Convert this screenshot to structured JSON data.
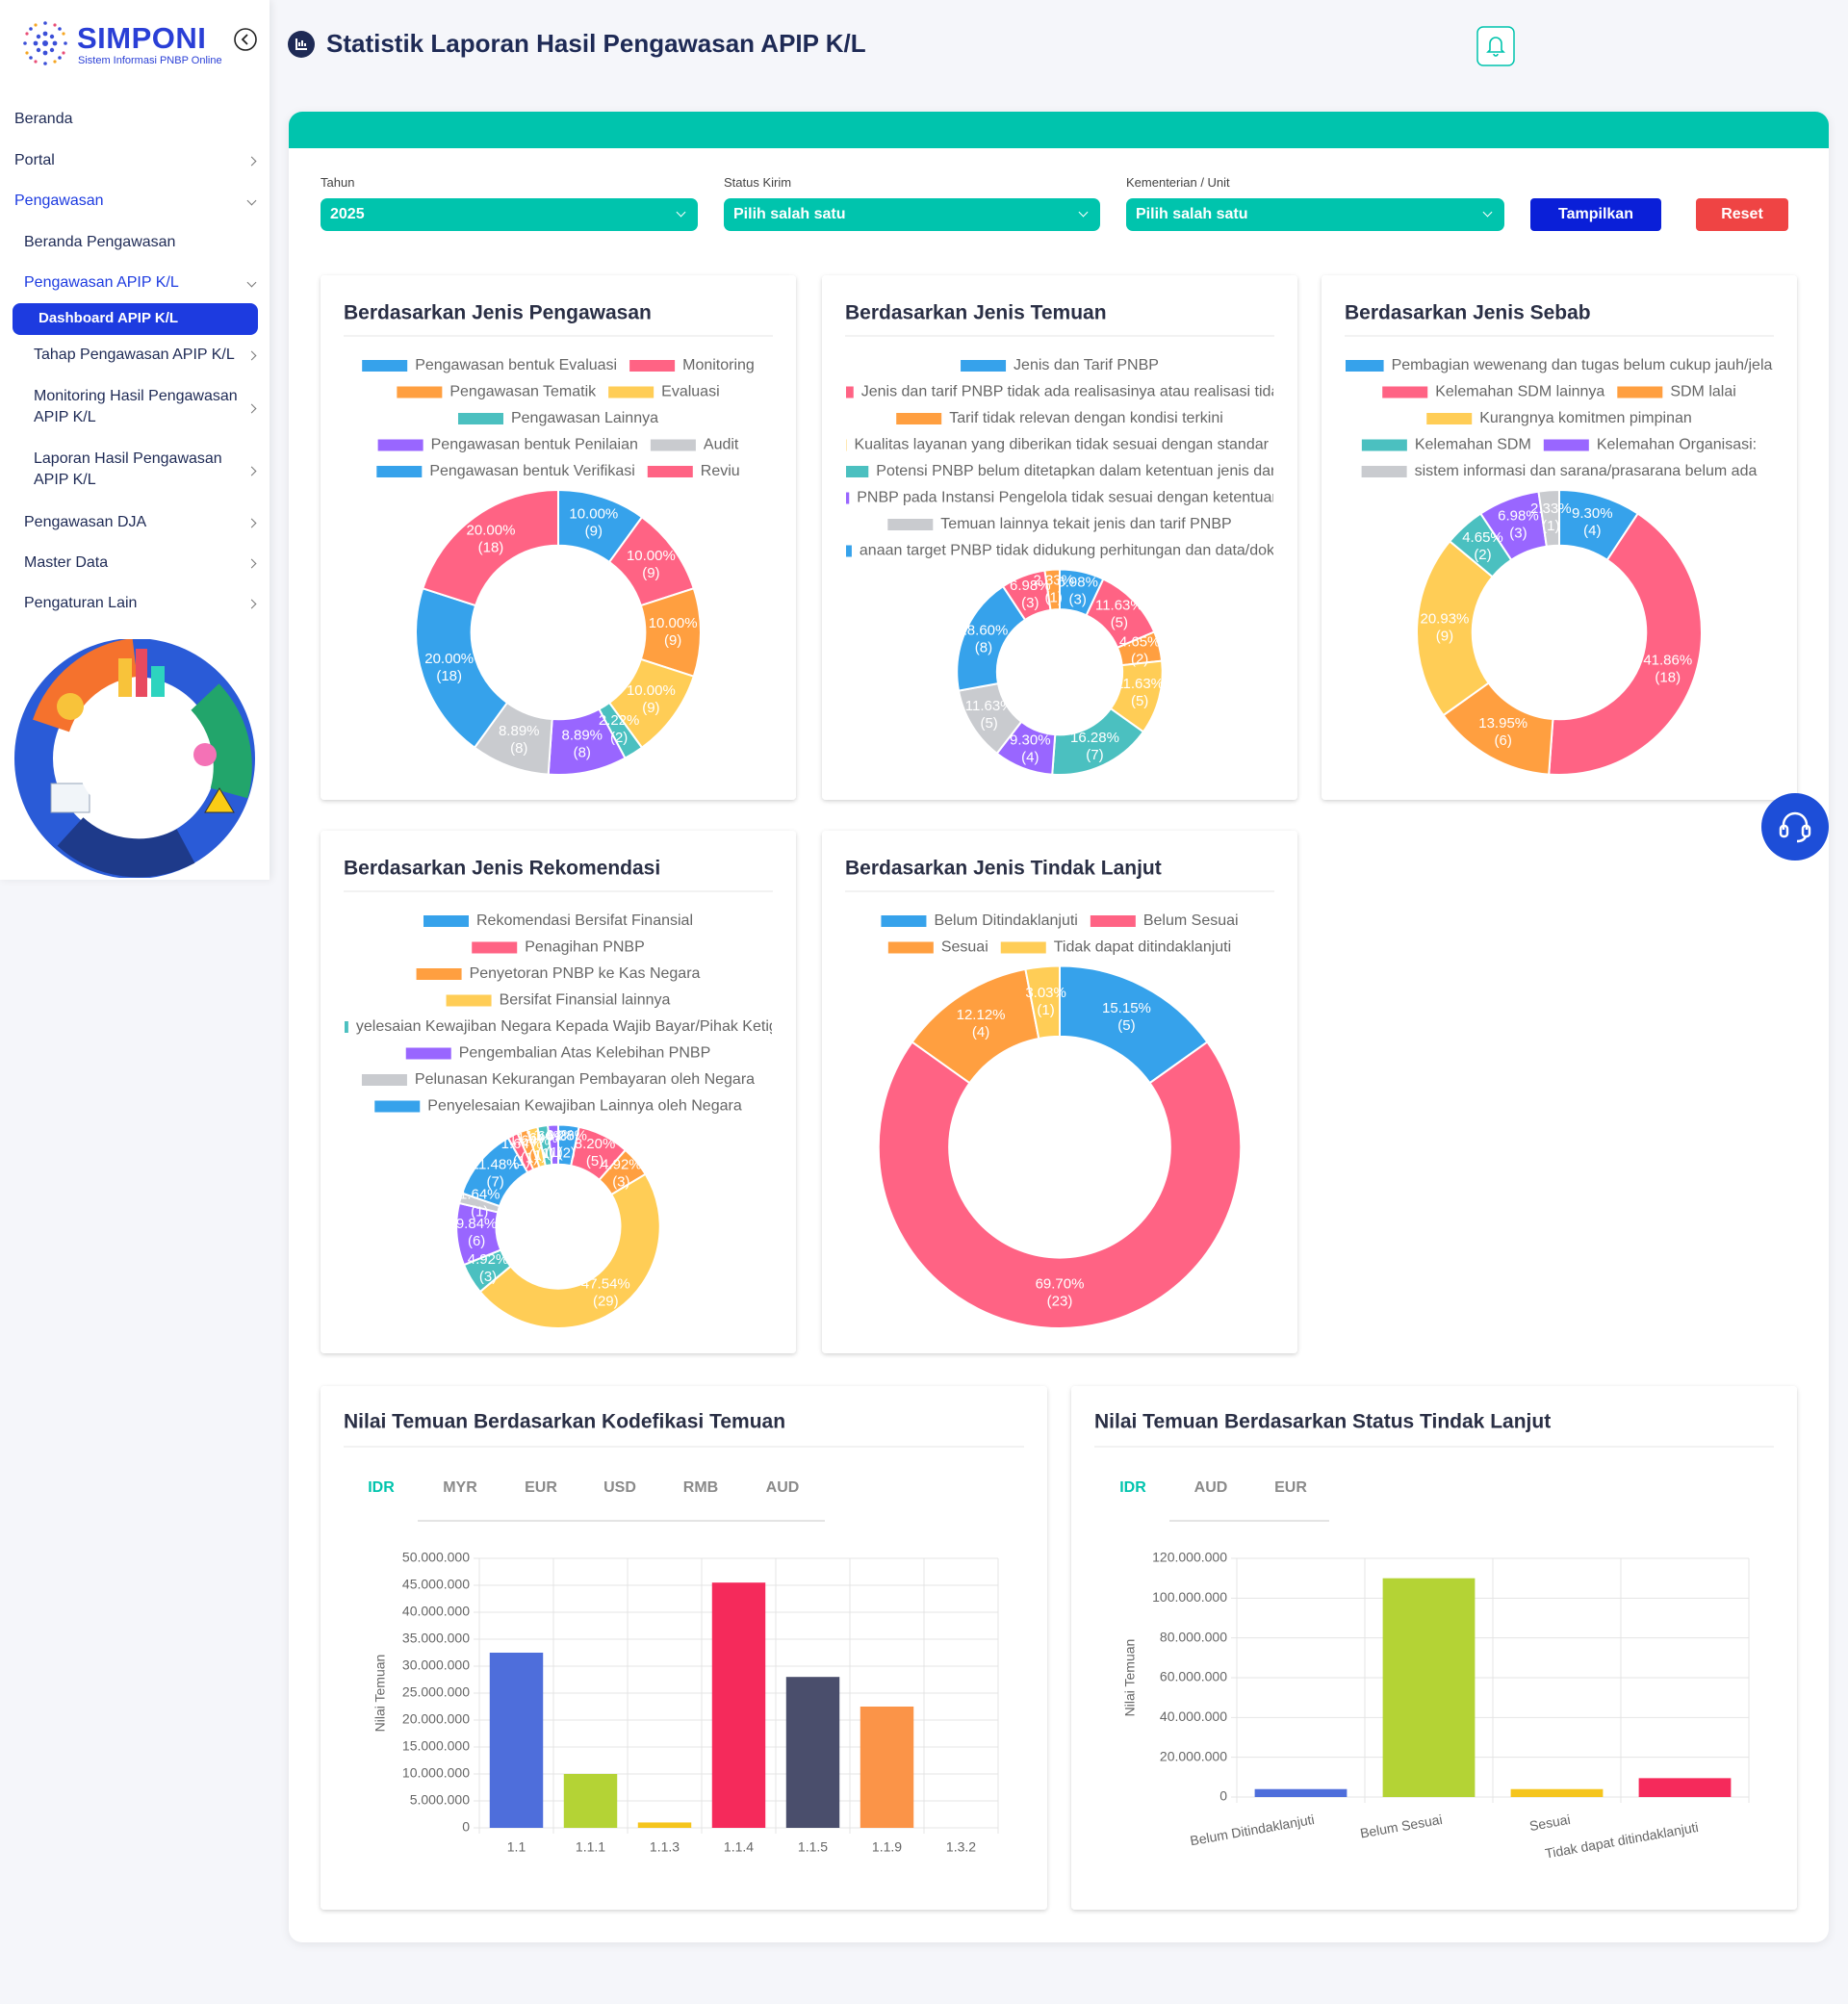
{
  "sidebar": {
    "brand": "SIMPONI",
    "tagline": "Sistem Informasi PNBP Online",
    "menu": [
      "Beranda",
      "Portal",
      "Pengawasan",
      "Beranda Pengawasan",
      "Pengawasan APIP K/L",
      "Dashboard APIP K/L",
      "Tahap Pengawasan APIP K/L",
      "Monitoring Hasil Pengawasan APIP K/L",
      "Laporan Hasil Pengawasan APIP K/L",
      "Pengawasan DJA",
      "Master Data",
      "Pengaturan Lain"
    ]
  },
  "header": {
    "title": "Statistik Laporan Hasil Pengawasan APIP K/L"
  },
  "filters": [
    {
      "label": "Tahun",
      "value": "2025"
    },
    {
      "label": "Status Kirim",
      "value": "Pilih salah satu"
    },
    {
      "label": "Kementerian / Unit",
      "value": "Pilih salah satu"
    }
  ],
  "buttons": [
    "Tampilkan",
    "Reset"
  ],
  "chart_data": [
    {
      "type": "doughnut",
      "title": "Berdasarkan Jenis Pengawasan",
      "categories": [
        "Pengawasan bentuk Evaluasi",
        "Monitoring",
        "Pengawasan Tematik",
        "Evaluasi",
        "Pengawasan Lainnya",
        "Pengawasan bentuk Penilaian",
        "Audit",
        "Pengawasan bentuk Verifikasi",
        "Reviu"
      ],
      "values": [
        9,
        9,
        9,
        9,
        2,
        8,
        8,
        18,
        18
      ],
      "value_labels": [
        "(9)",
        "(9)",
        "(9)",
        "(9)",
        "(2)",
        "(8)",
        "(8)",
        "(18)",
        "(18)"
      ],
      "percent_labels": [
        "10.00%",
        "10.00%",
        "10.00%",
        "10.00%",
        "2.22%",
        "8.89%",
        "8.89%",
        "20.00%",
        "20.00%"
      ],
      "colors": [
        "#36a2eb",
        "#ff6384",
        "#ff9f40",
        "#ffcd56",
        "#4bc0c0",
        "#9966ff",
        "#c9cbcf",
        "#36a2eb",
        "#ff6384"
      ]
    },
    {
      "type": "doughnut",
      "title": "Berdasarkan Jenis Temuan",
      "categories": [
        "Jenis dan Tarif PNBP",
        "Jenis dan tarif PNBP tidak ada realisasinya atau realisasi tidak sig",
        "Tarif tidak relevan dengan kondisi terkini",
        "Kualitas layanan yang diberikan tidak sesuai dengan standar layana",
        "Potensi PNBP belum ditetapkan dalam ketentuan jenis dan ta",
        "PNBP pada Instansi Pengelola tidak sesuai dengan ketentuan pera",
        "Temuan lainnya tekait jenis dan tarif PNBP",
        "anaan target PNBP tidak didukung perhitungan dan data/dokumen",
        null,
        null
      ],
      "values": [
        3,
        5,
        2,
        5,
        7,
        4,
        5,
        8,
        3,
        1
      ],
      "value_labels": [
        "(3)",
        "(5)",
        "(2)",
        "(5)",
        "(7)",
        "(4)",
        "(5)",
        "(8)",
        "(3)",
        "(1)"
      ],
      "percent_labels": [
        "6.98%",
        "11.63%",
        "4.65%",
        "11.63%",
        "16.28%",
        "9.30%",
        "11.63%",
        "18.60%",
        "6.98%",
        "2.33%"
      ],
      "colors": [
        "#36a2eb",
        "#ff6384",
        "#ff9f40",
        "#ffcd56",
        "#4bc0c0",
        "#9966ff",
        "#c9cbcf",
        "#36a2eb",
        "#ff6384",
        "#ff9f40"
      ]
    },
    {
      "type": "doughnut",
      "title": "Berdasarkan Jenis Sebab",
      "categories": [
        "Pembagian wewenang dan tugas belum cukup jauh/jelas",
        "Kelemahan SDM lainnya",
        "SDM lalai",
        "Kurangnya komitmen pimpinan",
        "Kelemahan SDM",
        "Kelemahan Organisasi:",
        "sistem informasi dan sarana/prasarana belum ada"
      ],
      "values": [
        4,
        18,
        6,
        9,
        2,
        3,
        1
      ],
      "value_labels": [
        "(4)",
        "(18)",
        "(6)",
        "(9)",
        "(2)",
        "(3)",
        "(1)"
      ],
      "percent_labels": [
        "9.30%",
        "41.86%",
        "13.95%",
        "20.93%",
        "4.65%",
        "6.98%",
        "2.33%"
      ],
      "colors": [
        "#36a2eb",
        "#ff6384",
        "#ff9f40",
        "#ffcd56",
        "#4bc0c0",
        "#9966ff",
        "#c9cbcf"
      ]
    },
    {
      "type": "doughnut",
      "title": "Berdasarkan Jenis Rekomendasi",
      "categories": [
        "Rekomendasi Bersifat Finansial",
        "Penagihan PNBP",
        "Penyetoran PNBP ke Kas Negara",
        "Bersifat Finansial lainnya",
        "yelesaian Kewajiban Negara Kepada Wajib Bayar/Pihak Ketiga Rel",
        "Pengembalian Atas Kelebihan PNBP",
        "Pelunasan Kekurangan Pembayaran oleh Negara",
        "Penyelesaian Kewajiban Lainnya oleh Negara",
        null,
        null,
        null,
        null,
        null
      ],
      "values": [
        2,
        5,
        3,
        29,
        3,
        6,
        1,
        7,
        1,
        1,
        1,
        1,
        1
      ],
      "value_labels": [
        "(2)",
        "(5)",
        "(3)",
        "(29)",
        "(3)",
        "(6)",
        "(1)",
        "(7)",
        "(1)",
        "(1)",
        "(1)",
        "(1)",
        "(1)"
      ],
      "percent_labels": [
        "3.28%",
        "8.20%",
        "4.92%",
        "47.54%",
        "4.92%",
        "9.84%",
        "1.64%",
        "11.48%",
        "1.64%",
        "1.64%",
        "1.64%",
        "1.64%",
        "1.64%"
      ],
      "colors": [
        "#36a2eb",
        "#ff6384",
        "#ff9f40",
        "#ffcd56",
        "#4bc0c0",
        "#9966ff",
        "#c9cbcf",
        "#36a2eb",
        "#ff6384",
        "#ff9f40",
        "#ffcd56",
        "#4bc0c0",
        "#9966ff"
      ]
    },
    {
      "type": "doughnut",
      "title": "Berdasarkan Jenis Tindak Lanjut",
      "categories": [
        "Belum Ditindaklanjuti",
        "Belum Sesuai",
        "Sesuai",
        "Tidak dapat ditindaklanjuti"
      ],
      "values": [
        5,
        23,
        4,
        1
      ],
      "value_labels": [
        "(5)",
        "(23)",
        "(4)",
        "(1)"
      ],
      "percent_labels": [
        "15.15%",
        "69.70%",
        "12.12%",
        "3.03%"
      ],
      "colors": [
        "#36a2eb",
        "#ff6384",
        "#ff9f40",
        "#ffcd56"
      ]
    },
    {
      "type": "bar",
      "title": "Nilai Temuan Berdasarkan Kodefikasi Temuan",
      "tabs": [
        "IDR",
        "MYR",
        "EUR",
        "USD",
        "RMB",
        "AUD"
      ],
      "ylabel": "Nilai Temuan",
      "categories": [
        "1.1",
        "1.1.1",
        "1.1.3",
        "1.1.4",
        "1.1.5",
        "1.1.9",
        "1.3.2"
      ],
      "values": [
        32500000,
        10000000,
        1000000,
        45500000,
        28000000,
        22500000,
        0
      ],
      "colors": [
        "#4e6edb",
        "#b4d335",
        "#f5c51d",
        "#f52a5b",
        "#4a4e6c",
        "#fb9448",
        "#5a8fd8"
      ],
      "ylim": [
        0,
        50000000
      ],
      "yticks": [
        0,
        {
          "value": 5000000,
          "label": "5.000.000"
        },
        {
          "value": 10000000,
          "label": "10.000.000"
        },
        {
          "value": 15000000,
          "label": "15.000.000"
        },
        {
          "value": 20000000,
          "label": "20.000.000"
        },
        {
          "value": 25000000,
          "label": "25.000.000"
        },
        {
          "value": 30000000,
          "label": "30.000.000"
        },
        {
          "value": 35000000,
          "label": "35.000.000"
        },
        {
          "value": 40000000,
          "label": "40.000.000"
        },
        {
          "value": 45000000,
          "label": "45.000.000"
        },
        {
          "value": 50000000,
          "label": "50.000.000"
        }
      ],
      "grid": true
    },
    {
      "type": "bar",
      "title": "Nilai Temuan Berdasarkan Status Tindak Lanjut",
      "tabs": [
        "IDR",
        "AUD",
        "EUR"
      ],
      "ylabel": "Nilai Temuan",
      "categories": [
        "Belum Ditindaklanjuti",
        "Belum Sesuai",
        "Sesuai",
        "Tidak dapat ditindaklanjuti"
      ],
      "values": [
        4000000,
        110000000,
        4000000,
        9500000
      ],
      "colors": [
        "#4e6edb",
        "#b4d335",
        "#f5c51d",
        "#f52a5b"
      ],
      "ylim": [
        0,
        120000000
      ],
      "yticks": [
        0,
        {
          "value": 20000000,
          "label": "20.000.000"
        },
        {
          "value": 40000000,
          "label": "40.000.000"
        },
        {
          "value": 60000000,
          "label": "60.000.000"
        },
        {
          "value": 80000000,
          "label": "80.000.000"
        },
        {
          "value": 100000000,
          "label": "100.000.000"
        },
        {
          "value": 120000000,
          "label": "120.000.000"
        }
      ],
      "grid": true
    }
  ]
}
